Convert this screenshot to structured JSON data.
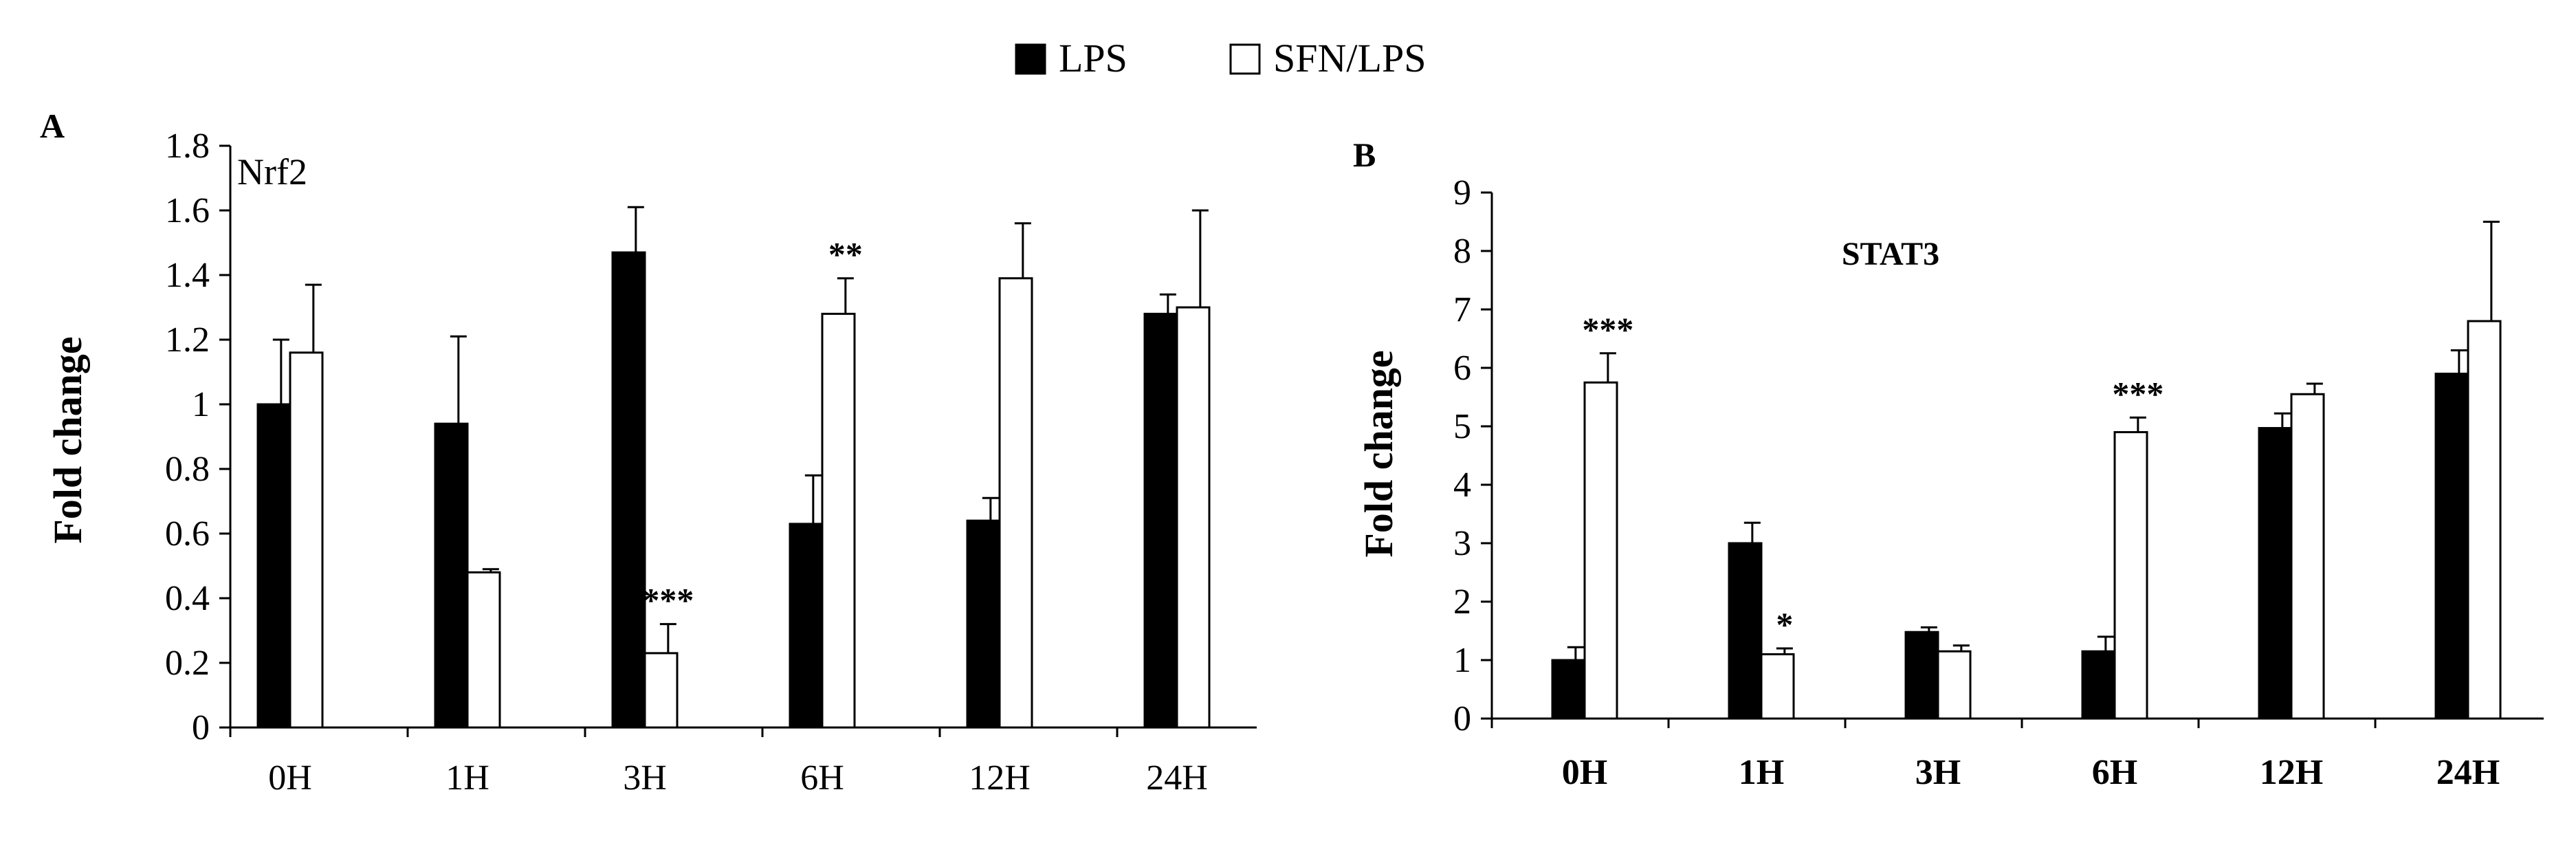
{
  "legend": {
    "items": [
      {
        "label": "LPS",
        "fill": "#000000"
      },
      {
        "label": "SFN/LPS",
        "fill": "#ffffff"
      }
    ]
  },
  "chart_data": [
    {
      "panel": "A",
      "type": "bar",
      "title": "Nrf2",
      "ylabel": "Fold change",
      "xlabel": "",
      "categories": [
        "0H",
        "1H",
        "3H",
        "6H",
        "12H",
        "24H"
      ],
      "ylim": [
        0,
        1.8
      ],
      "yticks": [
        "0",
        "0.2",
        "0.4",
        "0.6",
        "0.8",
        "1",
        "1.2",
        "1.4",
        "1.6",
        "1.8"
      ],
      "grid": false,
      "legend_position": "top-center",
      "series": [
        {
          "name": "LPS",
          "color": "#000000",
          "values": [
            1.0,
            0.94,
            1.47,
            0.63,
            0.64,
            1.28
          ],
          "errors": [
            0.2,
            0.27,
            0.14,
            0.15,
            0.07,
            0.06
          ]
        },
        {
          "name": "SFN/LPS",
          "color": "#ffffff",
          "values": [
            1.16,
            0.48,
            0.23,
            1.28,
            1.39,
            1.3
          ],
          "errors": [
            0.21,
            0.01,
            0.09,
            0.11,
            0.17,
            0.3
          ]
        }
      ],
      "annotations": [
        {
          "category": "3H",
          "series": "SFN/LPS",
          "text": "***"
        },
        {
          "category": "6H",
          "series": "SFN/LPS",
          "text": "**"
        }
      ]
    },
    {
      "panel": "B",
      "type": "bar",
      "title": "STAT3",
      "ylabel": "Fold change",
      "xlabel": "",
      "categories": [
        "0H",
        "1H",
        "3H",
        "6H",
        "12H",
        "24H"
      ],
      "ylim": [
        0,
        9
      ],
      "yticks": [
        "0",
        "1",
        "2",
        "3",
        "4",
        "5",
        "6",
        "7",
        "8",
        "9"
      ],
      "grid": false,
      "legend_position": "top-center",
      "series": [
        {
          "name": "LPS",
          "color": "#000000",
          "values": [
            1.0,
            3.0,
            1.48,
            1.15,
            4.97,
            5.9
          ],
          "errors": [
            0.22,
            0.35,
            0.08,
            0.25,
            0.25,
            0.4
          ]
        },
        {
          "name": "SFN/LPS",
          "color": "#ffffff",
          "values": [
            5.75,
            1.1,
            1.15,
            4.9,
            5.55,
            6.8
          ],
          "errors": [
            0.5,
            0.1,
            0.1,
            0.25,
            0.18,
            1.7
          ]
        }
      ],
      "annotations": [
        {
          "category": "0H",
          "series": "SFN/LPS",
          "text": "***"
        },
        {
          "category": "1H",
          "series": "SFN/LPS",
          "text": "*"
        },
        {
          "category": "6H",
          "series": "SFN/LPS",
          "text": "***"
        }
      ]
    }
  ]
}
